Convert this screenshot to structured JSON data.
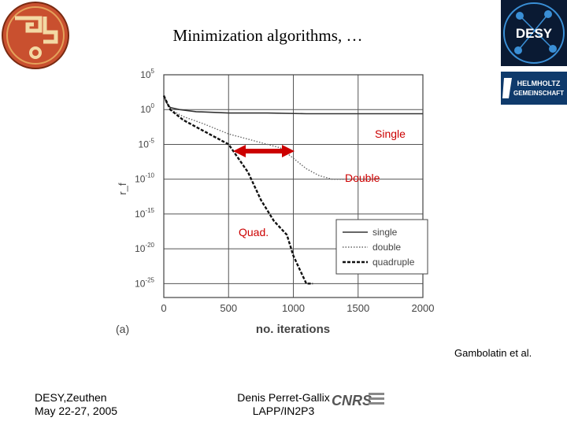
{
  "slide": {
    "title": "Minimization algorithms, …",
    "credit": "Gambolatin et al.",
    "footer_left_line1": "DESY,Zeuthen",
    "footer_left_line2": "May 22-27, 2005",
    "footer_center_line1": "Denis Perret-Gallix",
    "footer_center_line2": "LAPP/IN2P3",
    "logos": {
      "desy": "DESY",
      "helmholtz_line1": "HELMHOLTZ",
      "helmholtz_line2": "GEMEINSCHAFT",
      "cnrs": "CNRS"
    }
  },
  "chart_data": {
    "type": "line",
    "panel_label": "(a)",
    "xlabel": "no. iterations",
    "ylabel": "r_f",
    "xlim": [
      0,
      2000
    ],
    "ylim_exponent": [
      -27,
      5
    ],
    "xticks": [
      0,
      500,
      1000,
      1500,
      2000
    ],
    "yticks_exponent": [
      5,
      0,
      -5,
      -10,
      -15,
      -20,
      -25
    ],
    "grid": true,
    "legend_position": "right",
    "legend": [
      "single",
      "double",
      "quadruple"
    ],
    "annotations": [
      "Single",
      "Double",
      "Quad."
    ],
    "accent_color": "#cc0000",
    "series": [
      {
        "name": "single",
        "style": "solid",
        "points_log10": [
          [
            0,
            2
          ],
          [
            20,
            1
          ],
          [
            50,
            0.3
          ],
          [
            120,
            0
          ],
          [
            250,
            -0.3
          ],
          [
            500,
            -0.5
          ],
          [
            800,
            -0.5
          ],
          [
            1100,
            -0.6
          ],
          [
            1500,
            -0.6
          ],
          [
            1800,
            -0.6
          ],
          [
            2000,
            -0.6
          ]
        ]
      },
      {
        "name": "double",
        "style": "dotted",
        "points_log10": [
          [
            0,
            2
          ],
          [
            50,
            0
          ],
          [
            150,
            -1
          ],
          [
            300,
            -2
          ],
          [
            500,
            -3.5
          ],
          [
            700,
            -4.5
          ],
          [
            900,
            -5.5
          ],
          [
            1000,
            -7
          ],
          [
            1100,
            -8.5
          ],
          [
            1200,
            -9.5
          ],
          [
            1300,
            -10
          ],
          [
            1400,
            -10
          ]
        ]
      },
      {
        "name": "quadruple",
        "style": "dashed",
        "points_log10": [
          [
            0,
            2
          ],
          [
            50,
            0
          ],
          [
            150,
            -1.5
          ],
          [
            300,
            -3
          ],
          [
            400,
            -4
          ],
          [
            500,
            -5
          ],
          [
            650,
            -9
          ],
          [
            750,
            -13
          ],
          [
            850,
            -16
          ],
          [
            950,
            -18
          ],
          [
            1000,
            -21
          ],
          [
            1050,
            -23
          ],
          [
            1100,
            -25
          ],
          [
            1150,
            -25
          ]
        ]
      }
    ]
  }
}
